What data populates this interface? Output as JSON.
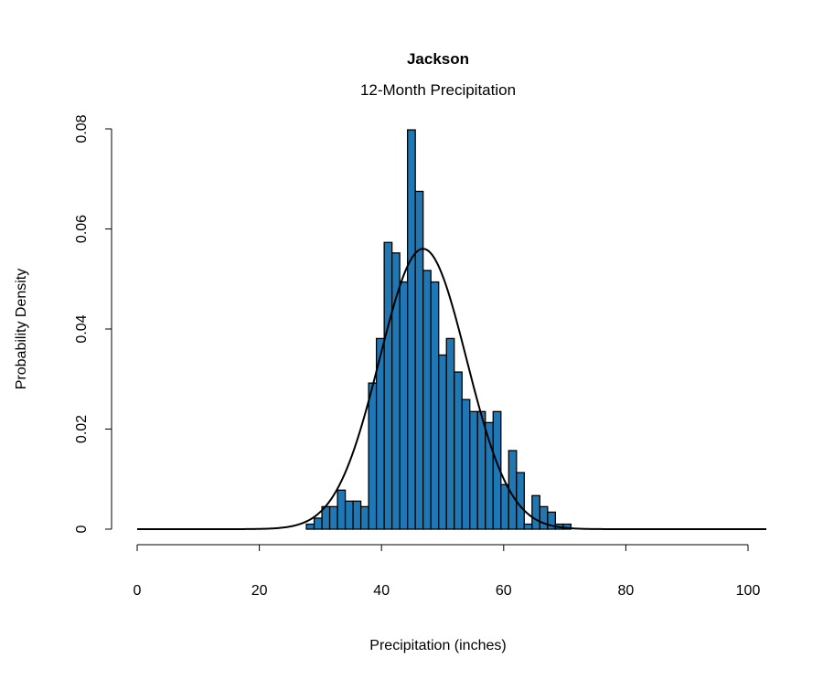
{
  "chart_data": {
    "type": "bar",
    "title": "Jackson",
    "subtitle": "12-Month Precipitation",
    "xlabel": "Precipitation (inches)",
    "ylabel": "Probability Density",
    "xlim": [
      0,
      103
    ],
    "ylim": [
      0,
      0.08
    ],
    "x_ticks": [
      0,
      20,
      40,
      60,
      80,
      100
    ],
    "x_tick_labels": [
      "0",
      "20",
      "40",
      "60",
      "80",
      "100"
    ],
    "y_ticks": [
      0,
      0.02,
      0.04,
      0.06,
      0.08
    ],
    "y_tick_labels": [
      "0",
      "0.02",
      "0.04",
      "0.06",
      "0.08"
    ],
    "grid": false,
    "bar_color": "#1f77b4",
    "histogram": {
      "bin_start": 27.7,
      "bin_width": 1.274,
      "densities": [
        0.001,
        0.0022,
        0.0045,
        0.0045,
        0.0078,
        0.0056,
        0.0056,
        0.0045,
        0.0292,
        0.0381,
        0.0573,
        0.0552,
        0.0494,
        0.0798,
        0.0675,
        0.0517,
        0.0494,
        0.0348,
        0.0381,
        0.0314,
        0.0259,
        0.0235,
        0.0235,
        0.0213,
        0.0235,
        0.0089,
        0.0157,
        0.0113,
        0.001,
        0.0067,
        0.0045,
        0.0034,
        0.001,
        0.001
      ]
    },
    "normal_curve": {
      "mean": 46.8,
      "sd": 7.12,
      "color": "#000000"
    }
  }
}
